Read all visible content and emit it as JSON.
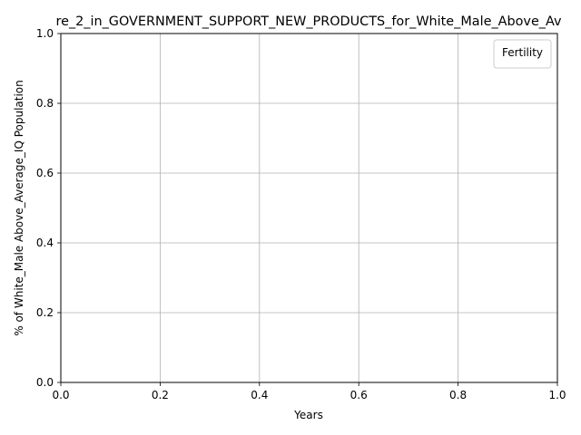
{
  "chart_data": {
    "type": "line",
    "title": "re_2_in_GOVERNMENT_SUPPORT_NEW_PRODUCTS_for_White_Male_Above_Av",
    "xlabel": "Years",
    "ylabel": "% of White_Male Above_Average_IQ Population",
    "xlim": [
      0.0,
      1.0
    ],
    "ylim": [
      0.0,
      1.0
    ],
    "xticks": [
      "0.0",
      "0.2",
      "0.4",
      "0.6",
      "0.8",
      "1.0"
    ],
    "yticks": [
      "0.0",
      "0.2",
      "0.4",
      "0.6",
      "0.8",
      "1.0"
    ],
    "grid": true,
    "legend": {
      "title": "Fertility",
      "placement": "top-right",
      "entries": []
    },
    "series": []
  }
}
